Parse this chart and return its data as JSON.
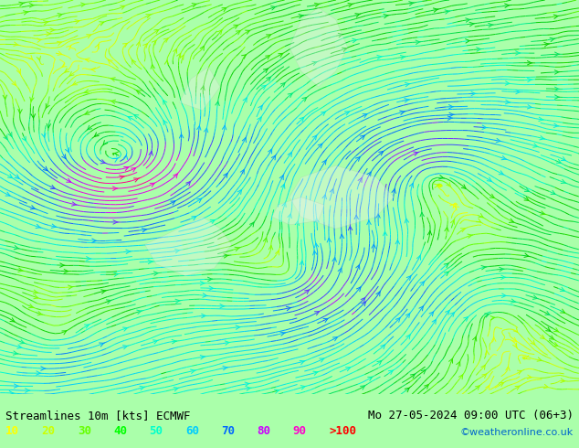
{
  "title_left": "Streamlines 10m [kts] ECMWF",
  "title_right": "Mo 27-05-2024 09:00 UTC (06+3)",
  "credit": "©weatheronline.co.uk",
  "legend_values": [
    "10",
    "20",
    "30",
    "40",
    "50",
    "60",
    "70",
    "80",
    "90",
    ">100"
  ],
  "legend_colors": [
    "#ffff00",
    "#ccff00",
    "#66ff00",
    "#00ff00",
    "#00ffcc",
    "#00ccff",
    "#0066ff",
    "#cc00ff",
    "#ff00cc",
    "#ff0000"
  ],
  "bg_color": "#aaffaa",
  "fig_width": 6.34,
  "fig_height": 4.9,
  "dpi": 100,
  "bottom_bar_color": "#ffffff",
  "text_color": "#000000",
  "font_size_title": 9,
  "font_size_legend": 9
}
